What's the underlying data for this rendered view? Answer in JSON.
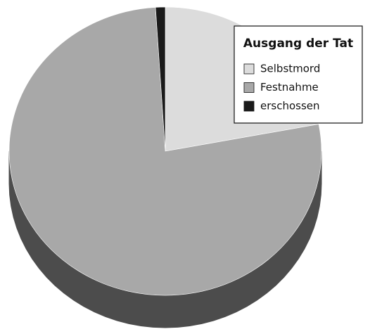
{
  "chart_data": {
    "type": "pie3d",
    "title": "Ausgang der Tat",
    "categories": [
      "Selbstmord",
      "Festnahme",
      "erschossen"
    ],
    "values": [
      22,
      77,
      1
    ],
    "colors": [
      "#dcdcdc",
      "#a8a8a8",
      "#1a1a1a"
    ],
    "legend": "top-right"
  }
}
